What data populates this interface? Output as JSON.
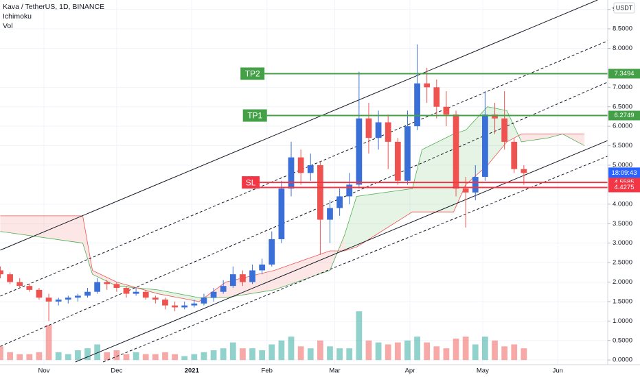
{
  "chart_data": {
    "type": "candlestick",
    "title": "Kava / TetherUS, 1D, BINANCE",
    "indicators": [
      "Ichimoku",
      "Vol"
    ],
    "currency": "USDT",
    "countdown": "18:09:43",
    "xlim": [
      -18.13,
      232.6
    ],
    "ylim": [
      -0.12,
      9.24
    ],
    "grid": true,
    "up_color": "#3b6fd8",
    "down_color": "#ef5350",
    "xticks": [
      {
        "value": 0,
        "label": "Nov"
      },
      {
        "value": 30,
        "label": "Dec"
      },
      {
        "value": 61,
        "label": "2021"
      },
      {
        "value": 92,
        "label": "Feb"
      },
      {
        "value": 120,
        "label": "Mar"
      },
      {
        "value": 151,
        "label": "Apr"
      },
      {
        "value": 181,
        "label": "May"
      },
      {
        "value": 212,
        "label": "Jun"
      }
    ],
    "yticks": [
      {
        "value": 0,
        "label": "0.0000"
      },
      {
        "value": 0.5,
        "label": "0.5000"
      },
      {
        "value": 1,
        "label": "1.0000"
      },
      {
        "value": 1.5,
        "label": "1.5000"
      },
      {
        "value": 2,
        "label": "2.0000"
      },
      {
        "value": 2.5,
        "label": "2.5000"
      },
      {
        "value": 3,
        "label": "3.0000"
      },
      {
        "value": 3.5,
        "label": "3.5000"
      },
      {
        "value": 4,
        "label": "4.0000"
      },
      {
        "value": 5,
        "label": "5.0000"
      },
      {
        "value": 5.5,
        "label": "5.5000"
      },
      {
        "value": 6,
        "label": "6.0000"
      },
      {
        "value": 6.5,
        "label": "6.5000"
      },
      {
        "value": 7,
        "label": "7.0000"
      },
      {
        "value": 8,
        "label": "8.0000"
      },
      {
        "value": 8.5,
        "label": "8.5000"
      },
      9
    ],
    "x": [
      -18,
      -14,
      -10,
      -6,
      -2,
      2,
      6,
      10,
      14,
      18,
      22,
      26,
      30,
      34,
      38,
      42,
      46,
      50,
      54,
      58,
      62,
      66,
      70,
      74,
      78,
      82,
      86,
      90,
      94,
      98,
      102,
      106,
      110,
      114,
      118,
      122,
      126,
      130,
      134,
      138,
      142,
      146,
      150,
      154,
      158,
      162,
      166,
      170,
      174,
      178,
      182,
      186,
      190,
      194,
      198
    ],
    "candles": [
      [
        2.3,
        2.4,
        2.1,
        2.2
      ],
      [
        2.2,
        2.25,
        1.95,
        2.0
      ],
      [
        2.0,
        2.1,
        1.85,
        1.9
      ],
      [
        1.9,
        1.95,
        1.75,
        1.8
      ],
      [
        1.8,
        1.85,
        1.55,
        1.6
      ],
      [
        1.6,
        1.7,
        1.0,
        1.5
      ],
      [
        1.5,
        1.6,
        1.4,
        1.55
      ],
      [
        1.55,
        1.65,
        1.45,
        1.6
      ],
      [
        1.6,
        1.7,
        1.5,
        1.65
      ],
      [
        1.65,
        1.85,
        1.6,
        1.75
      ],
      [
        1.75,
        2.1,
        1.7,
        2.0
      ],
      [
        2.0,
        2.05,
        1.8,
        1.95
      ],
      [
        1.95,
        2.0,
        1.75,
        1.85
      ],
      [
        1.85,
        1.9,
        1.6,
        1.7
      ],
      [
        1.7,
        1.85,
        1.65,
        1.75
      ],
      [
        1.75,
        1.8,
        1.55,
        1.6
      ],
      [
        1.6,
        1.65,
        1.45,
        1.55
      ],
      [
        1.55,
        1.6,
        1.3,
        1.4
      ],
      [
        1.4,
        1.5,
        1.25,
        1.35
      ],
      [
        1.35,
        1.5,
        1.3,
        1.4
      ],
      [
        1.4,
        1.55,
        1.35,
        1.45
      ],
      [
        1.45,
        1.7,
        1.4,
        1.6
      ],
      [
        1.6,
        1.85,
        1.5,
        1.75
      ],
      [
        1.75,
        2.05,
        1.7,
        1.9
      ],
      [
        1.9,
        2.4,
        1.85,
        2.2
      ],
      [
        2.2,
        2.3,
        1.9,
        2.0
      ],
      [
        2.0,
        2.45,
        1.95,
        2.3
      ],
      [
        2.3,
        2.6,
        2.2,
        2.45
      ],
      [
        2.45,
        3.3,
        2.4,
        3.1
      ],
      [
        3.1,
        4.6,
        3.0,
        4.4
      ],
      [
        4.4,
        5.6,
        4.2,
        5.2
      ],
      [
        5.2,
        5.4,
        4.5,
        4.8
      ],
      [
        4.8,
        5.3,
        4.6,
        5.0
      ],
      [
        5.0,
        5.1,
        2.7,
        3.6
      ],
      [
        3.6,
        4.1,
        3.0,
        3.9
      ],
      [
        3.9,
        4.4,
        3.7,
        4.2
      ],
      [
        4.2,
        4.8,
        4.0,
        4.5
      ],
      [
        4.5,
        7.4,
        4.4,
        6.2
      ],
      [
        6.2,
        6.6,
        5.3,
        5.7
      ],
      [
        5.7,
        6.4,
        5.4,
        6.1
      ],
      [
        6.1,
        6.3,
        4.9,
        5.6
      ],
      [
        5.6,
        5.7,
        4.5,
        4.6
      ],
      [
        4.6,
        6.4,
        4.5,
        6.0
      ],
      [
        6.0,
        8.1,
        5.9,
        7.1
      ],
      [
        7.1,
        7.5,
        6.6,
        7.0
      ],
      [
        7.0,
        7.2,
        6.2,
        6.5
      ],
      [
        6.5,
        6.9,
        6.0,
        6.3
      ],
      [
        6.3,
        6.4,
        4.2,
        4.4
      ],
      [
        4.4,
        4.7,
        3.4,
        4.3
      ],
      [
        4.3,
        5.0,
        4.1,
        4.7
      ],
      [
        4.7,
        6.9,
        4.6,
        6.3
      ],
      [
        6.3,
        6.6,
        5.8,
        6.2
      ],
      [
        6.2,
        6.9,
        5.4,
        5.6
      ],
      [
        5.6,
        5.7,
        4.8,
        4.9
      ],
      [
        4.9,
        5.0,
        4.5,
        4.8
      ]
    ],
    "volume": [
      0.35,
      0.2,
      0.15,
      0.15,
      0.2,
      0.9,
      0.2,
      0.15,
      0.25,
      0.3,
      0.4,
      0.2,
      0.25,
      0.15,
      0.2,
      0.15,
      0.15,
      0.2,
      0.15,
      0.1,
      0.15,
      0.2,
      0.25,
      0.3,
      0.45,
      0.3,
      0.3,
      0.25,
      0.4,
      0.5,
      0.6,
      0.35,
      0.3,
      0.5,
      0.35,
      0.3,
      0.3,
      1.25,
      0.5,
      0.45,
      0.4,
      0.45,
      0.5,
      0.6,
      0.45,
      0.35,
      0.3,
      0.55,
      0.6,
      0.4,
      0.6,
      0.5,
      0.35,
      0.4,
      0.3
    ],
    "cloud": {
      "up_color": "#4caf50",
      "down_color": "#ef5350",
      "x": [
        -18,
        16,
        20,
        30,
        47,
        64,
        75,
        95,
        118,
        124,
        129,
        152,
        156,
        169,
        174,
        183,
        191,
        197,
        208,
        214,
        223
      ],
      "span_a": [
        3.3,
        3.0,
        2.2,
        1.9,
        1.8,
        1.6,
        1.6,
        1.8,
        2.3,
        3.2,
        4.2,
        4.4,
        5.4,
        5.8,
        5.9,
        6.5,
        6.4,
        5.6,
        5.7,
        5.8,
        5.5
      ],
      "span_b": [
        3.7,
        3.7,
        2.3,
        2.0,
        1.7,
        1.5,
        2.0,
        2.3,
        2.8,
        2.8,
        2.9,
        3.8,
        3.8,
        3.8,
        4.5,
        5.0,
        5.6,
        5.8,
        5.8,
        5.8,
        5.8
      ]
    },
    "trendlines": [
      {
        "x": [
          -18,
          228.4
        ],
        "y": [
          2.82,
          9.24
        ],
        "dashed": false
      },
      {
        "x": [
          -18,
          232.5
        ],
        "y": [
          1.64,
          8.19
        ],
        "dashed": true
      },
      {
        "x": [
          -18,
          232.5
        ],
        "y": [
          0.35,
          7.13
        ],
        "dashed": true
      },
      {
        "x": [
          13,
          232.5
        ],
        "y": [
          -0.05,
          5.63
        ],
        "dashed": false
      },
      {
        "x": [
          24.4,
          232.5
        ],
        "y": [
          -0.05,
          5.23
        ],
        "dashed": true
      }
    ],
    "levels": [
      {
        "label": "TP2",
        "value": 7.3494,
        "x_start": 91,
        "color": "#43a047"
      },
      {
        "label": "TP1",
        "value": 6.2749,
        "x_start": 92,
        "color": "#43a047"
      },
      {
        "label": "SL",
        "value": 4.5585,
        "x_start": 89,
        "color": "#f23645"
      },
      {
        "value": 4.4275,
        "x_start": 89,
        "color": "#f23645"
      }
    ]
  }
}
